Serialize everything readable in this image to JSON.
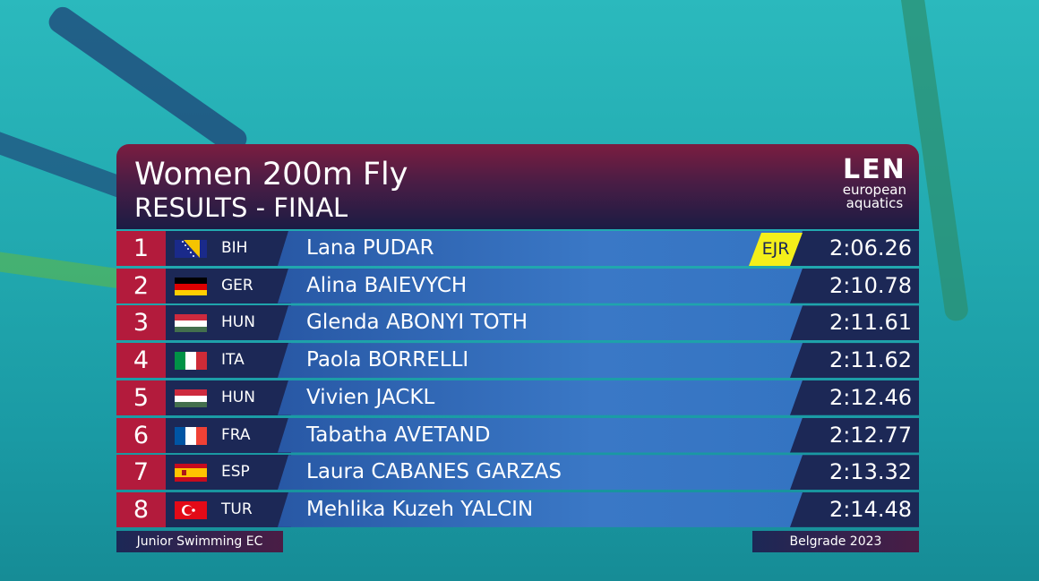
{
  "header": {
    "title": "Women 200m Fly",
    "subtitle": "RESULTS - FINAL",
    "logo": {
      "mark": "LEN",
      "line1": "european",
      "line2": "aquatics"
    }
  },
  "rows": [
    {
      "rank": 1,
      "country": "BIH",
      "name": "Lana PUDAR",
      "record": "EJR",
      "time": "2:06.26"
    },
    {
      "rank": 2,
      "country": "GER",
      "name": "Alina BAIEVYCH",
      "time": "2:10.78"
    },
    {
      "rank": 3,
      "country": "HUN",
      "name": "Glenda ABONYI TOTH",
      "time": "2:11.61"
    },
    {
      "rank": 4,
      "country": "ITA",
      "name": "Paola BORRELLI",
      "time": "2:11.62"
    },
    {
      "rank": 5,
      "country": "HUN",
      "name": "Vivien JACKL",
      "time": "2:12.46"
    },
    {
      "rank": 6,
      "country": "FRA",
      "name": "Tabatha AVETAND",
      "time": "2:12.77"
    },
    {
      "rank": 7,
      "country": "ESP",
      "name": "Laura CABANES GARZAS",
      "time": "2:13.32"
    },
    {
      "rank": 8,
      "country": "TUR",
      "name": "Mehlika Kuzeh YALCIN",
      "time": "2:14.48"
    }
  ],
  "footer": {
    "event": "Junior Swimming EC",
    "location": "Belgrade 2023"
  }
}
